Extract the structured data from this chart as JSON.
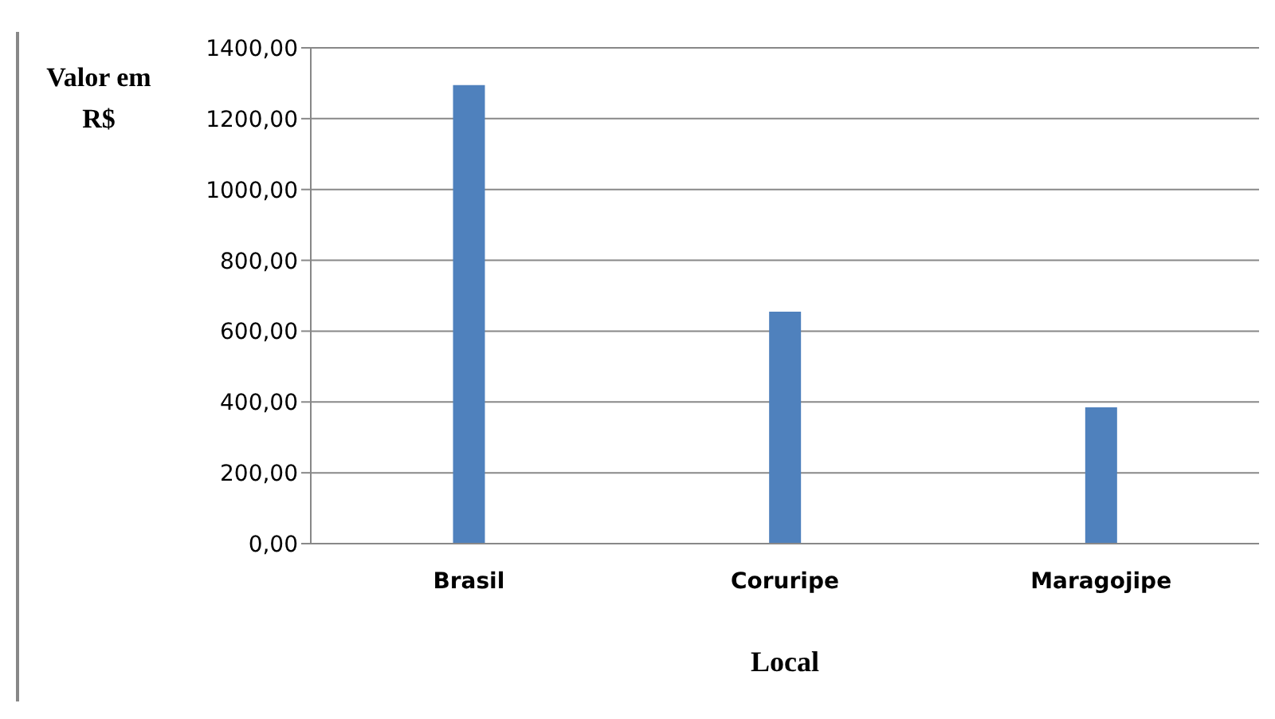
{
  "chart_data": {
    "type": "bar",
    "xlabel": "Local",
    "ylabel": "Valor em R$",
    "categories": [
      "Brasil",
      "Coruripe",
      "Maragojipe"
    ],
    "values": [
      1295,
      655,
      385
    ],
    "color": "#4f81bd",
    "ylim": [
      0,
      1400
    ],
    "yticks": [
      {
        "value": 0,
        "label": "0,00"
      },
      {
        "value": 200,
        "label": "200,00"
      },
      {
        "value": 400,
        "label": "400,00"
      },
      {
        "value": 600,
        "label": "600,00"
      },
      {
        "value": 800,
        "label": "800,00"
      },
      {
        "value": 1000,
        "label": "1000,00"
      },
      {
        "value": 1200,
        "label": "1200,00"
      },
      {
        "value": 1400,
        "label": "1400,00"
      }
    ],
    "grid": "y",
    "legend": false
  }
}
